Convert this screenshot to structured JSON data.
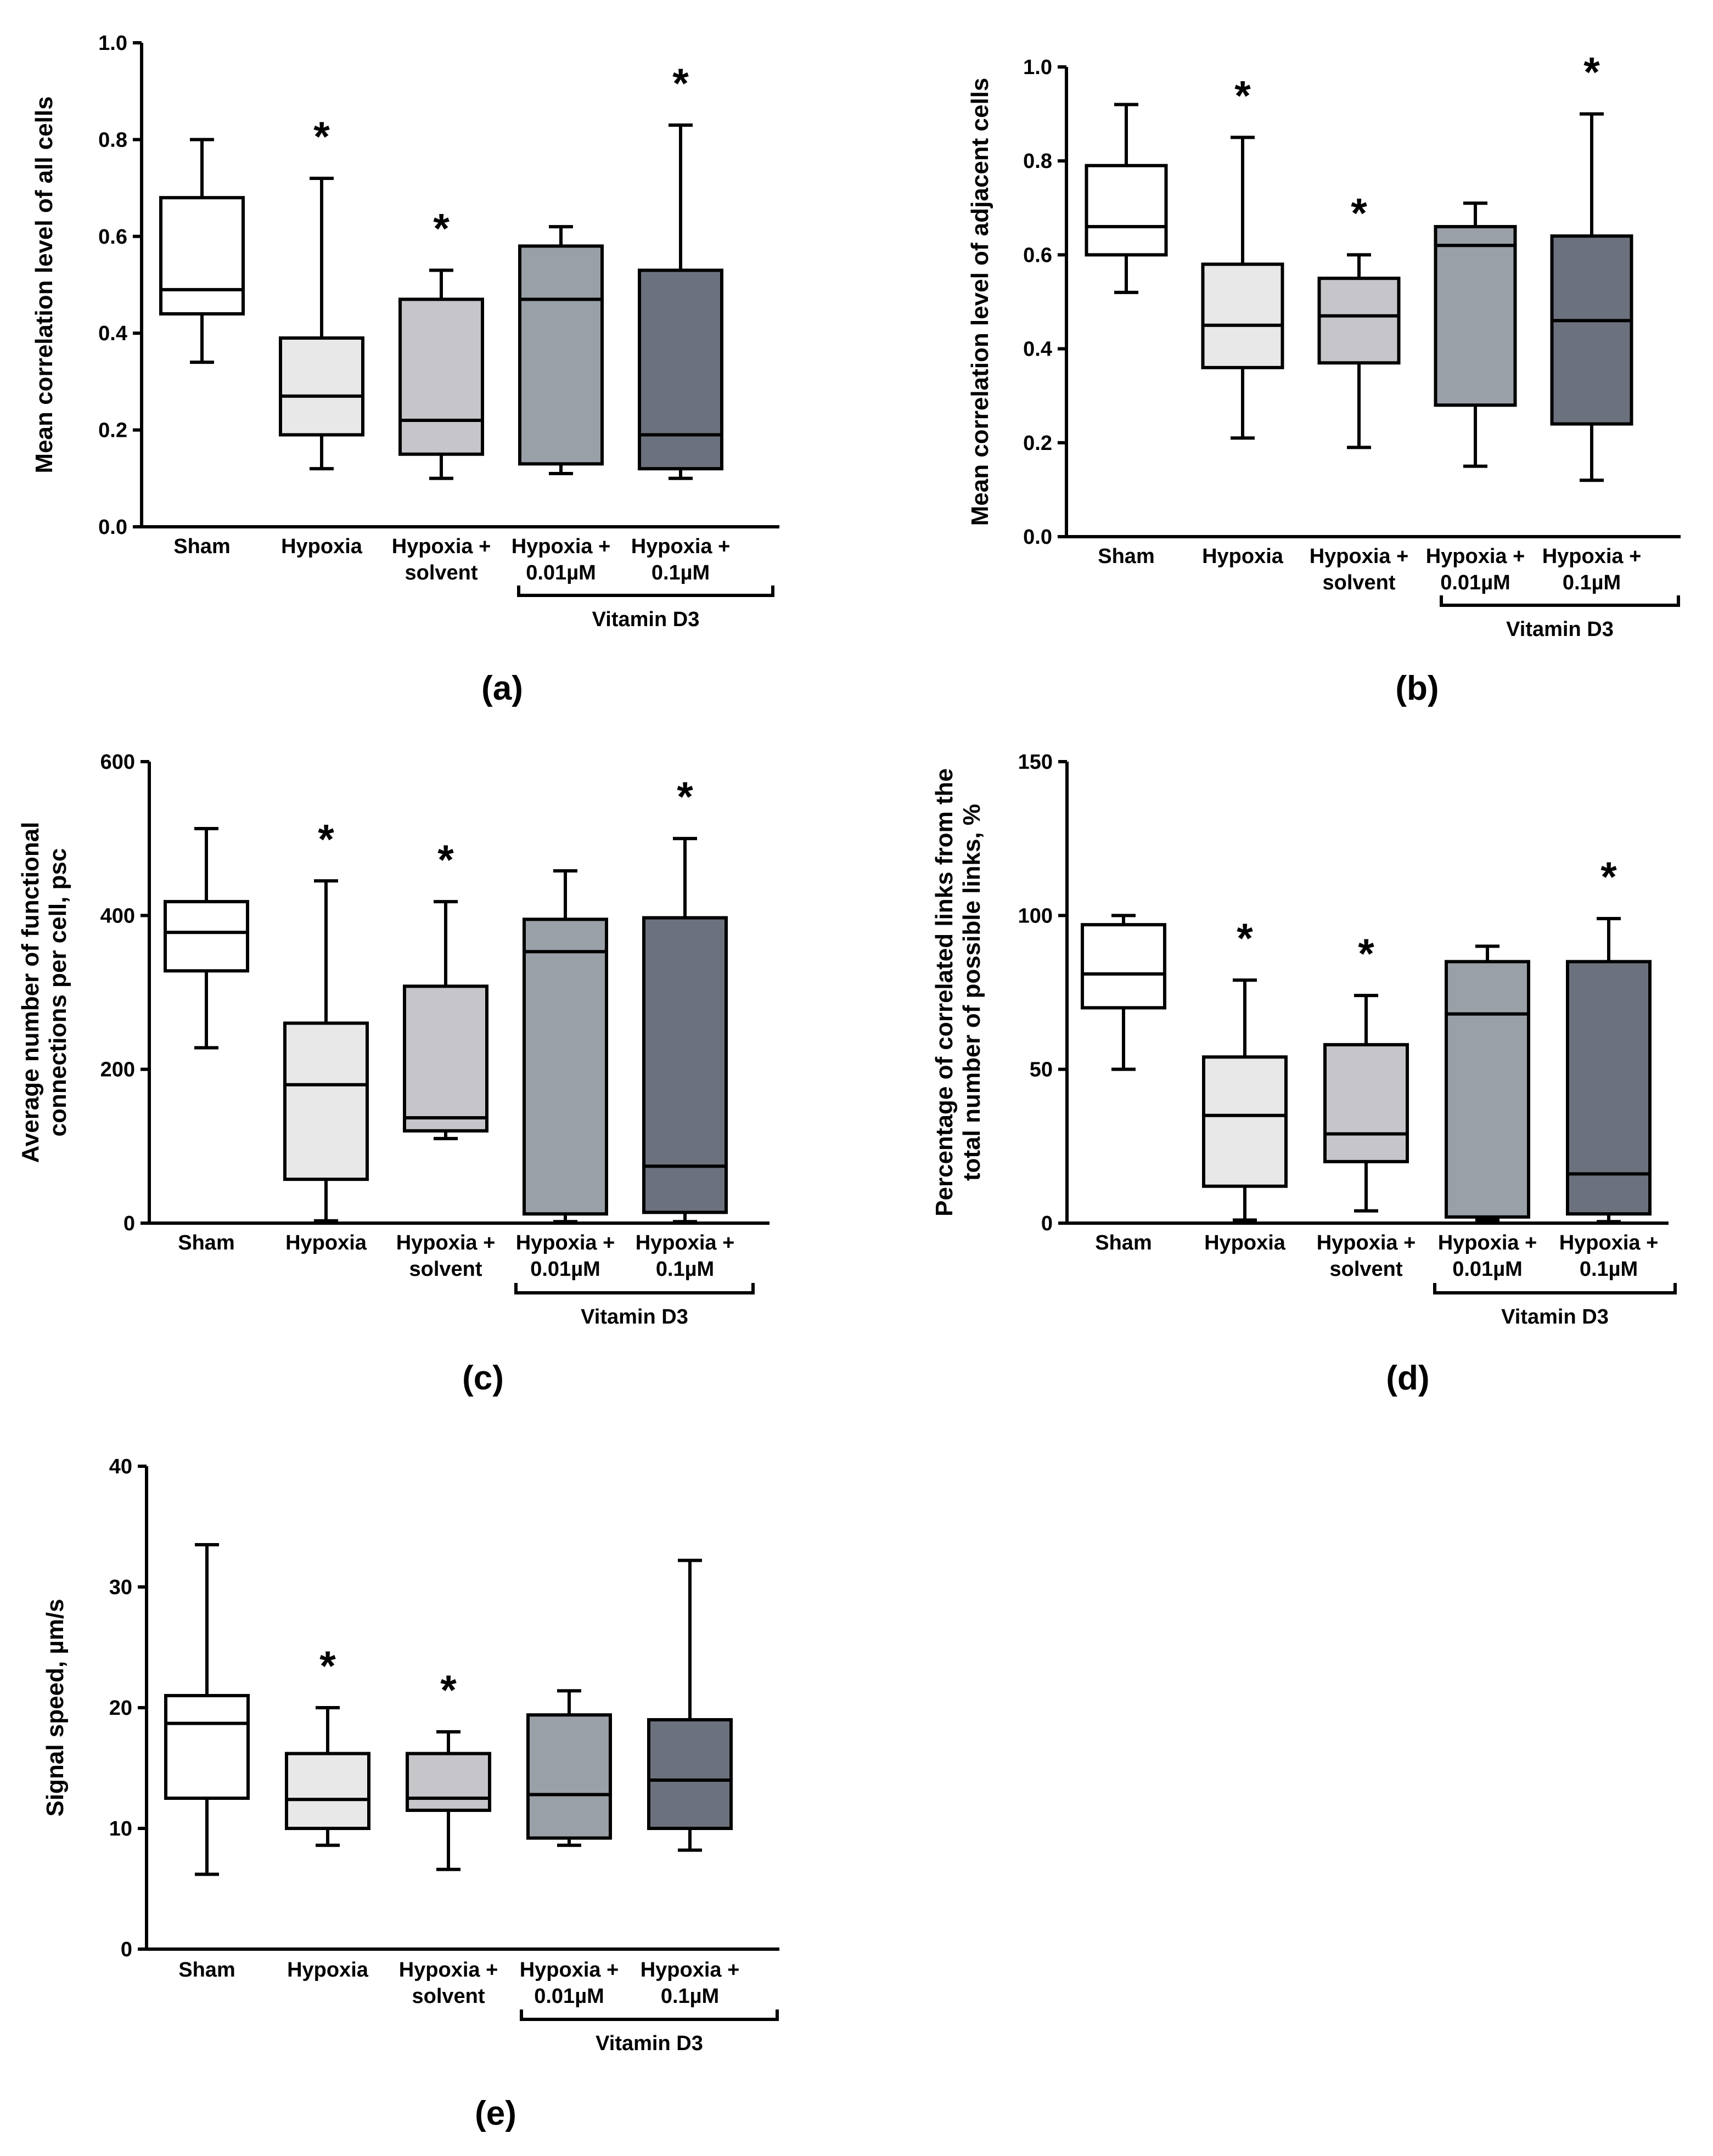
{
  "chart_data": [
    {
      "type": "boxplot",
      "panel_label": "(a)",
      "ylabel": "Mean correlation level of all cells",
      "ylim": [
        0,
        1.0
      ],
      "yticks": [
        "0.0",
        "0.2",
        "0.4",
        "0.6",
        "0.8",
        "1.0"
      ],
      "categories": [
        {
          "line1": "Sham",
          "line2": ""
        },
        {
          "line1": "Hypoxia",
          "line2": ""
        },
        {
          "line1": "Hypoxia +",
          "line2": "solvent"
        },
        {
          "line1": "Hypoxia +",
          "line2": "0.01µM"
        },
        {
          "line1": "Hypoxia +",
          "line2": "0.1µM"
        }
      ],
      "bracket_label": "Vitamin D3",
      "star": "*",
      "boxes": [
        {
          "min": 0.34,
          "q1": 0.44,
          "median": 0.49,
          "q3": 0.68,
          "max": 0.8,
          "color": "#ffffff",
          "significant": false
        },
        {
          "min": 0.12,
          "q1": 0.19,
          "median": 0.27,
          "q3": 0.39,
          "max": 0.72,
          "color": "#e8e8e8",
          "significant": true
        },
        {
          "min": 0.1,
          "q1": 0.15,
          "median": 0.22,
          "q3": 0.47,
          "max": 0.53,
          "color": "#c6c6ca",
          "significant": true
        },
        {
          "min": 0.11,
          "q1": 0.13,
          "median": 0.47,
          "q3": 0.58,
          "max": 0.62,
          "color": "#9aa0a8",
          "significant": false
        },
        {
          "min": 0.1,
          "q1": 0.12,
          "median": 0.19,
          "q3": 0.53,
          "max": 0.83,
          "color": "#6c727d",
          "significant": true
        }
      ]
    },
    {
      "type": "boxplot",
      "panel_label": "(b)",
      "ylabel": "Mean correlation level of adjacent cells",
      "ylim": [
        0,
        1.0
      ],
      "yticks": [
        "0.0",
        "0.2",
        "0.4",
        "0.6",
        "0.8",
        "1.0"
      ],
      "categories": [
        {
          "line1": "Sham",
          "line2": ""
        },
        {
          "line1": "Hypoxia",
          "line2": ""
        },
        {
          "line1": "Hypoxia +",
          "line2": "solvent"
        },
        {
          "line1": "Hypoxia +",
          "line2": "0.01µM"
        },
        {
          "line1": "Hypoxia +",
          "line2": "0.1µM"
        }
      ],
      "bracket_label": "Vitamin D3",
      "star": "*",
      "boxes": [
        {
          "min": 0.52,
          "q1": 0.6,
          "median": 0.66,
          "q3": 0.79,
          "max": 0.92,
          "color": "#ffffff",
          "significant": false
        },
        {
          "min": 0.21,
          "q1": 0.36,
          "median": 0.45,
          "q3": 0.58,
          "max": 0.85,
          "color": "#e8e8e8",
          "significant": true
        },
        {
          "min": 0.19,
          "q1": 0.37,
          "median": 0.47,
          "q3": 0.55,
          "max": 0.6,
          "color": "#c6c6ca",
          "significant": true
        },
        {
          "min": 0.15,
          "q1": 0.28,
          "median": 0.62,
          "q3": 0.66,
          "max": 0.71,
          "color": "#9aa0a8",
          "significant": false
        },
        {
          "min": 0.12,
          "q1": 0.24,
          "median": 0.46,
          "q3": 0.64,
          "max": 0.9,
          "color": "#6c727d",
          "significant": true
        }
      ]
    },
    {
      "type": "boxplot",
      "panel_label": "(c)",
      "ylabel": "Average number of functional connections per cell, psc",
      "ylabel_lines": [
        "Average number of functional",
        "connections per cell, psc"
      ],
      "ylim": [
        0,
        600
      ],
      "yticks": [
        "0",
        "200",
        "400",
        "600"
      ],
      "categories": [
        {
          "line1": "Sham",
          "line2": ""
        },
        {
          "line1": "Hypoxia",
          "line2": ""
        },
        {
          "line1": "Hypoxia +",
          "line2": "solvent"
        },
        {
          "line1": "Hypoxia +",
          "line2": "0.01µM"
        },
        {
          "line1": "Hypoxia +",
          "line2": "0.1µM"
        }
      ],
      "bracket_label": "Vitamin D3",
      "star": "*",
      "boxes": [
        {
          "min": 228,
          "q1": 328,
          "median": 378,
          "q3": 418,
          "max": 513,
          "color": "#ffffff",
          "significant": false
        },
        {
          "min": 3,
          "q1": 57,
          "median": 180,
          "q3": 260,
          "max": 445,
          "color": "#e8e8e8",
          "significant": true
        },
        {
          "min": 110,
          "q1": 120,
          "median": 137,
          "q3": 308,
          "max": 418,
          "color": "#c6c6ca",
          "significant": true
        },
        {
          "min": 2,
          "q1": 12,
          "median": 353,
          "q3": 395,
          "max": 458,
          "color": "#9aa0a8",
          "significant": false
        },
        {
          "min": 2,
          "q1": 14,
          "median": 74,
          "q3": 397,
          "max": 500,
          "color": "#6c727d",
          "significant": true
        }
      ]
    },
    {
      "type": "boxplot",
      "panel_label": "(d)",
      "ylabel": "Percentage of correlated links from the total number of possible links, %",
      "ylabel_lines": [
        "Percentage of correlated links from the",
        "total number of possible links, %"
      ],
      "ylim": [
        0,
        150
      ],
      "yticks": [
        "0",
        "50",
        "100",
        "150"
      ],
      "categories": [
        {
          "line1": "Sham",
          "line2": ""
        },
        {
          "line1": "Hypoxia",
          "line2": ""
        },
        {
          "line1": "Hypoxia +",
          "line2": "solvent"
        },
        {
          "line1": "Hypoxia +",
          "line2": "0.01µM"
        },
        {
          "line1": "Hypoxia +",
          "line2": "0.1µM"
        }
      ],
      "bracket_label": "Vitamin D3",
      "star": "*",
      "boxes": [
        {
          "min": 50,
          "q1": 70,
          "median": 81,
          "q3": 97,
          "max": 100,
          "color": "#ffffff",
          "significant": false
        },
        {
          "min": 1,
          "q1": 12,
          "median": 35,
          "q3": 54,
          "max": 79,
          "color": "#e8e8e8",
          "significant": true
        },
        {
          "min": 4,
          "q1": 20,
          "median": 29,
          "q3": 58,
          "max": 74,
          "color": "#c6c6ca",
          "significant": true
        },
        {
          "min": 1,
          "q1": 2,
          "median": 68,
          "q3": 85,
          "max": 90,
          "color": "#9aa0a8",
          "significant": false
        },
        {
          "min": 0.5,
          "q1": 3,
          "median": 16,
          "q3": 85,
          "max": 99,
          "color": "#6c727d",
          "significant": true
        }
      ]
    },
    {
      "type": "boxplot",
      "panel_label": "(e)",
      "ylabel": "Signal speed, µm/s",
      "ylim": [
        0,
        40
      ],
      "yticks": [
        "0",
        "10",
        "20",
        "30",
        "40"
      ],
      "categories": [
        {
          "line1": "Sham",
          "line2": ""
        },
        {
          "line1": "Hypoxia",
          "line2": ""
        },
        {
          "line1": "Hypoxia +",
          "line2": "solvent"
        },
        {
          "line1": "Hypoxia +",
          "line2": "0.01µM"
        },
        {
          "line1": "Hypoxia +",
          "line2": "0.1µM"
        }
      ],
      "bracket_label": "Vitamin D3",
      "star": "*",
      "boxes": [
        {
          "min": 6.2,
          "q1": 12.5,
          "median": 18.7,
          "q3": 21.0,
          "max": 33.5,
          "color": "#ffffff",
          "significant": false
        },
        {
          "min": 8.6,
          "q1": 10.0,
          "median": 12.4,
          "q3": 16.2,
          "max": 20.0,
          "color": "#e8e8e8",
          "significant": true
        },
        {
          "min": 6.6,
          "q1": 11.5,
          "median": 12.5,
          "q3": 16.2,
          "max": 18.0,
          "color": "#c6c6ca",
          "significant": true
        },
        {
          "min": 8.6,
          "q1": 9.2,
          "median": 12.8,
          "q3": 19.4,
          "max": 21.4,
          "color": "#9aa0a8",
          "significant": false
        },
        {
          "min": 8.2,
          "q1": 10.0,
          "median": 14.0,
          "q3": 19.0,
          "max": 32.2,
          "color": "#6c727d",
          "significant": false
        }
      ]
    }
  ]
}
